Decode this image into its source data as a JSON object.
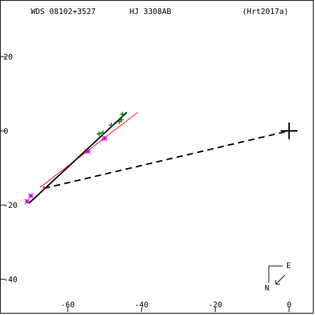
{
  "header": {
    "left": "WDS 08102+3527",
    "center": "HJ 3308AB",
    "right": "(Hrt2017a)"
  },
  "compass": {
    "east_label": "E",
    "north_label": "N"
  },
  "chart_data": {
    "type": "scatter",
    "title": "",
    "xlabel": "",
    "ylabel": "",
    "xlim": [
      -75,
      5
    ],
    "ylim": [
      -50,
      35
    ],
    "xticks": [
      -60,
      -40,
      -20,
      0
    ],
    "yticks": [
      20,
      0,
      -20,
      -40
    ],
    "xtick_labels": [
      "-60",
      "-40",
      "-20",
      "0"
    ],
    "ytick_labels": [
      "20",
      "0",
      "-20",
      "-40"
    ],
    "grid": false,
    "colors": {
      "green": "#008000",
      "magenta": "#cc00cc",
      "red": "#ff0000",
      "black": "#000000"
    },
    "origin_marker": {
      "x": 0,
      "y": 0
    },
    "orbit_line": {
      "x": [
        -70.5,
        -44.0
      ],
      "y": [
        -19.5,
        5.0
      ]
    },
    "fit_line": {
      "x": [
        -67.5,
        -41.0
      ],
      "y": [
        -15.2,
        5.0
      ]
    },
    "dashed_line": {
      "x": [
        -66.5,
        0
      ],
      "y": [
        -15.5,
        0
      ]
    },
    "observations_green": {
      "x": [
        -51.5,
        -50.5,
        -48.2,
        -46.0,
        -45.5,
        -45.2
      ],
      "y": [
        -0.8,
        -0.5,
        1.5,
        2.5,
        3.0,
        4.5
      ]
    },
    "observations_magenta": {
      "x": [
        -71.0,
        -70.0,
        -54.5,
        -50.0
      ],
      "y": [
        -19.0,
        -17.5,
        -5.5,
        -2.0
      ]
    },
    "highlight_red": {
      "x": [
        -66.5
      ],
      "y": [
        -15.5
      ]
    }
  }
}
